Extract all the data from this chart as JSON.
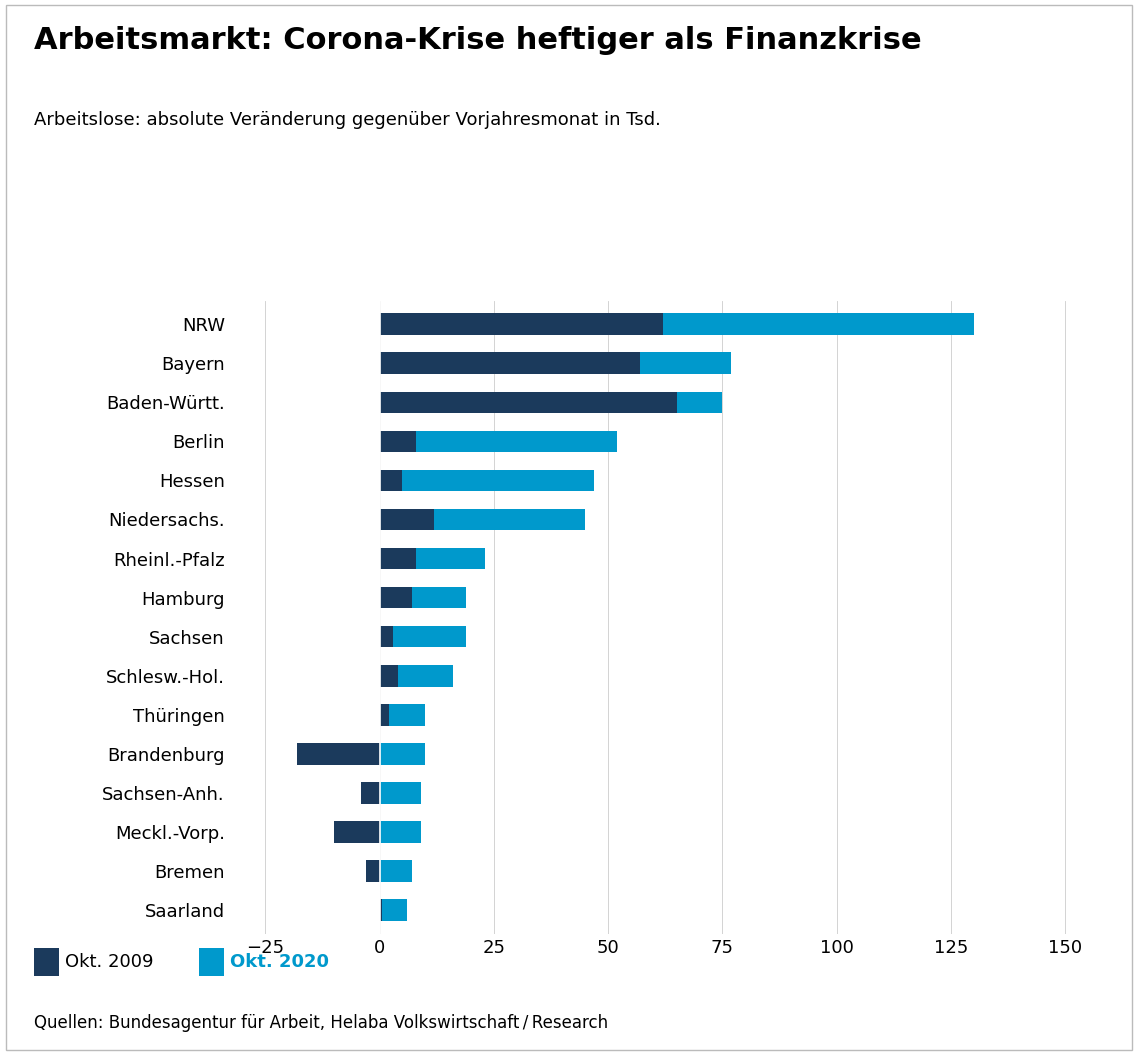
{
  "title": "Arbeitsmarkt: Corona-Krise heftiger als Finanzkrise",
  "subtitle": "Arbeitslose: absolute Veränderung gegenüber Vorjahresmonat in Tsd.",
  "source": "Quellen: Bundesagentur für Arbeit, Helaba Volkswirtschaft / Research",
  "categories": [
    "NRW",
    "Bayern",
    "Baden-Württ.",
    "Berlin",
    "Hessen",
    "Niedersachs.",
    "Rheinl.-Pfalz",
    "Hamburg",
    "Sachsen",
    "Schlesw.-Hol.",
    "Thüringen",
    "Brandenburg",
    "Sachsen-Anh.",
    "Meckl.-Vorp.",
    "Bremen",
    "Saarland"
  ],
  "okt2009": [
    62,
    57,
    65,
    8,
    5,
    12,
    8,
    7,
    3,
    4,
    2,
    -18,
    -4,
    -10,
    -3,
    0.5
  ],
  "okt2020": [
    130,
    77,
    75,
    52,
    47,
    45,
    23,
    19,
    19,
    16,
    10,
    10,
    9,
    9,
    7,
    6
  ],
  "color_2009": "#1b3a5c",
  "color_2020": "#0099cc",
  "xlim": [
    -32,
    156
  ],
  "xticks": [
    -25,
    0,
    25,
    50,
    75,
    100,
    125,
    150
  ],
  "background_color": "#ffffff",
  "legend_2009": "Okt. 2009",
  "legend_2020": "Okt. 2020",
  "bar_height": 0.55,
  "title_fontsize": 22,
  "subtitle_fontsize": 13,
  "tick_fontsize": 13,
  "legend_fontsize": 13,
  "source_fontsize": 12
}
